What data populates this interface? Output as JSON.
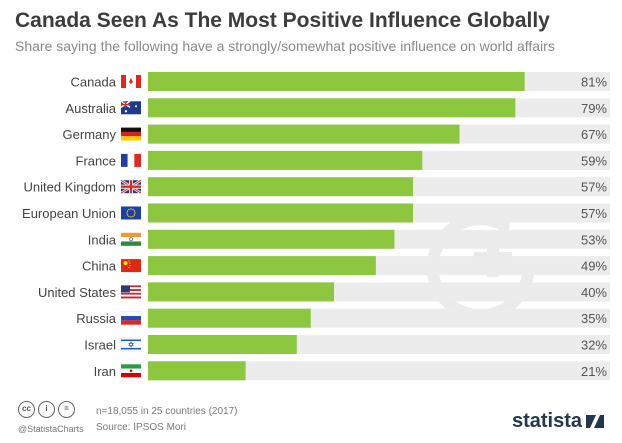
{
  "header": {
    "title": "Canada Seen As The Most Positive Influence Globally",
    "subtitle": "Share saying the following have a strongly/somewhat positive influence on world affairs"
  },
  "colors": {
    "bar": "#8dc63f",
    "track": "#ececec",
    "label": "#444444",
    "value": "#555555"
  },
  "flag_icons": [
    "canada-flag",
    "australia-flag",
    "germany-flag",
    "france-flag",
    "uk-flag",
    "eu-flag",
    "india-flag",
    "china-flag",
    "usa-flag",
    "russia-flag",
    "israel-flag",
    "iran-flag"
  ],
  "chart_data": {
    "type": "bar",
    "orientation": "horizontal",
    "categories": [
      "Canada",
      "Australia",
      "Germany",
      "France",
      "United Kingdom",
      "European Union",
      "India",
      "China",
      "United States",
      "Russia",
      "Israel",
      "Iran"
    ],
    "values": [
      81,
      79,
      67,
      59,
      57,
      57,
      53,
      49,
      40,
      35,
      32,
      21
    ],
    "value_labels": [
      "81%",
      "79%",
      "67%",
      "59%",
      "57%",
      "57%",
      "53%",
      "49%",
      "40%",
      "35%",
      "32%",
      "21%"
    ],
    "xlim": [
      0,
      100
    ],
    "grid": false,
    "legend": "none"
  },
  "footer": {
    "cc_icons": [
      "cc",
      "i",
      "="
    ],
    "handle": "@StatistaCharts",
    "note": "n=18,055 in 25 countries (2017)",
    "source": "Source: IPSOS Mori",
    "logo": "statista"
  }
}
